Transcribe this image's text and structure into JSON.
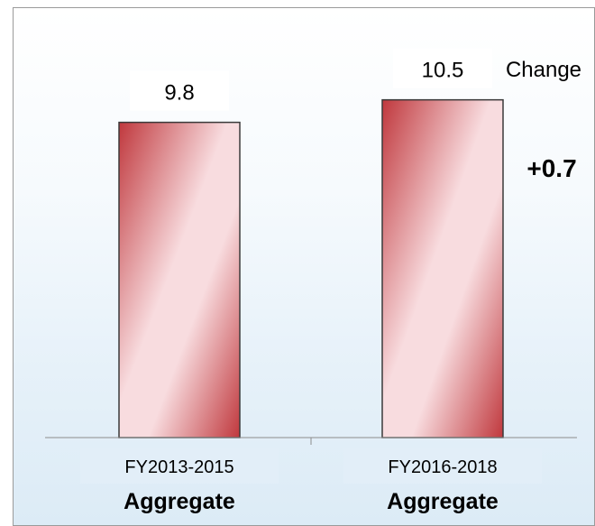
{
  "chart_data": {
    "type": "bar",
    "categories": [
      "FY2013-2015",
      "FY2016-2018"
    ],
    "category_sublabels": [
      "Aggregate",
      "Aggregate"
    ],
    "values": [
      9.8,
      10.5
    ],
    "value_labels": [
      "9.8",
      "10.5"
    ],
    "change_header": "Change",
    "change_value": "+0.7",
    "ylim": [
      0,
      11.5
    ],
    "grid": false,
    "legend": "none",
    "colors": {
      "bar_dark": "#c0383d",
      "bar_light": "#f8dcdf",
      "bar_edge": "#3a3a3a",
      "category_box": "#e2eef8"
    }
  }
}
